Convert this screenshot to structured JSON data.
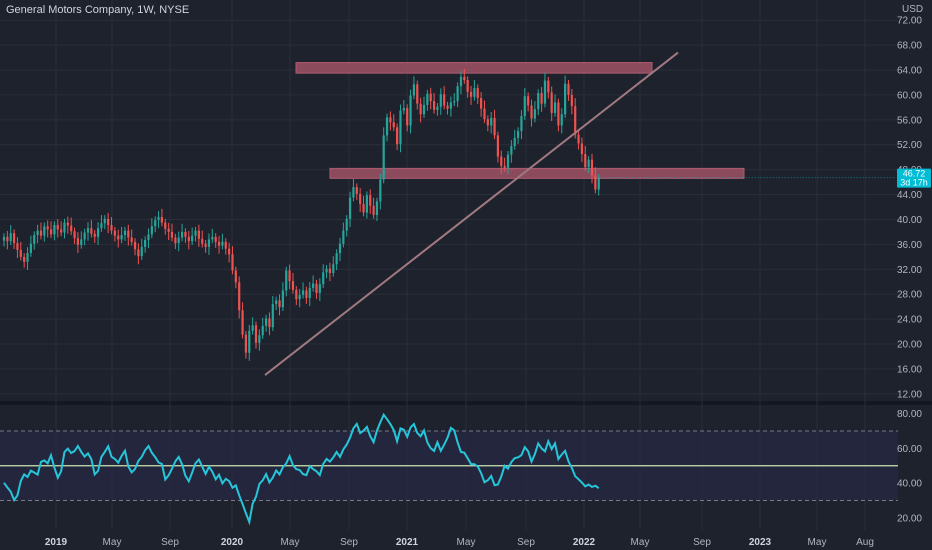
{
  "header": {
    "title": "General Motors Company, 1W, NYSE",
    "currency": "USD"
  },
  "colors": {
    "background": "#1e222d",
    "grid": "#2a2e39",
    "up": "#26a69a",
    "down": "#ef5350",
    "zone": "#b05a6e",
    "trendline": "#a07a80",
    "rsi_line": "#26c6da",
    "rsi_mid": "#c8e6b0",
    "rsi_band": "#2a2a4a",
    "price_tag": "#00bcd4"
  },
  "price_tag": {
    "line1": "46.72",
    "line2": "3d 17h"
  },
  "chart_data": [
    {
      "type": "candlestick",
      "title": "General Motors Company, 1W, NYSE",
      "ylim": [
        11,
        73
      ],
      "y_ticks": [
        "12.00",
        "16.00",
        "20.00",
        "24.00",
        "28.00",
        "32.00",
        "36.00",
        "40.00",
        "44.00",
        "48.00",
        "52.00",
        "56.00",
        "60.00",
        "64.00",
        "68.00",
        "72.00"
      ],
      "x_labels": [
        {
          "label": "2019",
          "bold": true
        },
        {
          "label": "May",
          "bold": false
        },
        {
          "label": "Sep",
          "bold": false
        },
        {
          "label": "2020",
          "bold": true
        },
        {
          "label": "May",
          "bold": false
        },
        {
          "label": "Sep",
          "bold": false
        },
        {
          "label": "2021",
          "bold": true
        },
        {
          "label": "May",
          "bold": false
        },
        {
          "label": "Sep",
          "bold": false
        },
        {
          "label": "2022",
          "bold": true
        },
        {
          "label": "May",
          "bold": false
        },
        {
          "label": "Sep",
          "bold": false
        },
        {
          "label": "2023",
          "bold": true
        },
        {
          "label": "May",
          "bold": false
        },
        {
          "label": "Aug",
          "bold": false
        }
      ],
      "close_series": [
        37.2,
        36.5,
        37.8,
        36.2,
        35.1,
        34.0,
        33.2,
        34.6,
        36.1,
        37.5,
        38.2,
        37.4,
        38.9,
        38.4,
        37.6,
        39.1,
        38.4,
        37.9,
        39.5,
        39.0,
        38.1,
        37.0,
        35.9,
        36.8,
        37.9,
        38.6,
        37.7,
        37.2,
        38.6,
        39.4,
        40.1,
        39.1,
        38.2,
        37.4,
        36.8,
        37.5,
        38.2,
        37.1,
        36.4,
        35.2,
        34.1,
        35.6,
        36.7,
        37.6,
        38.9,
        39.9,
        40.4,
        39.5,
        38.5,
        38.0,
        37.1,
        36.2,
        37.1,
        38.0,
        37.2,
        36.5,
        37.4,
        38.2,
        36.9,
        36.1,
        35.6,
        36.8,
        37.2,
        36.4,
        35.8,
        36.4,
        35.3,
        34.4,
        31.8,
        29.9,
        25.4,
        21.5,
        18.6,
        22.1,
        23.0,
        20.2,
        21.4,
        22.9,
        24.1,
        22.7,
        26.4,
        27.0,
        25.9,
        28.6,
        31.8,
        30.1,
        28.7,
        27.2,
        27.9,
        28.6,
        27.4,
        29.0,
        29.7,
        28.2,
        29.6,
        31.5,
        32.1,
        31.4,
        32.8,
        34.6,
        36.1,
        38.2,
        40.1,
        43.5,
        45.2,
        44.1,
        42.5,
        41.1,
        43.9,
        42.2,
        40.7,
        42.9,
        46.4,
        53.5,
        56.4,
        55.6,
        54.8,
        52.1,
        57.5,
        57.9,
        55.1,
        59.9,
        61.7,
        58.6,
        56.9,
        58.4,
        60.2,
        59.0,
        57.6,
        58.1,
        60.1,
        58.3,
        57.8,
        58.8,
        59.0,
        61.4,
        62.9,
        62.4,
        60.5,
        59.7,
        61.1,
        59.5,
        57.8,
        56.1,
        55.1,
        56.3,
        53.5,
        50.1,
        48.6,
        48.3,
        50.4,
        51.8,
        53.1,
        54.2,
        56.6,
        59.8,
        58.3,
        56.2,
        57.7,
        60.3,
        58.6,
        62.3,
        60.4,
        57.1,
        58.8,
        55.1,
        56.9,
        61.8,
        60.0,
        58.2,
        53.6,
        52.2,
        50.5,
        48.4,
        49.6,
        47.1,
        44.8,
        46.7
      ],
      "zones": [
        {
          "name": "resistance",
          "from": 63.5,
          "to": 65.2
        },
        {
          "name": "support",
          "from": 46.6,
          "to": 48.2
        }
      ],
      "trendline": {
        "from": {
          "price": 15.0
        },
        "to": {
          "price": 66.8
        }
      },
      "last_price": 46.72
    },
    {
      "type": "line",
      "name": "RSI",
      "ylim": [
        13,
        85
      ],
      "y_ticks": [
        "20.00",
        "40.00",
        "60.00",
        "80.00"
      ],
      "levels": {
        "upper": 70,
        "mid": 50,
        "lower": 30
      },
      "values": [
        40.2,
        37.5,
        35.1,
        30.2,
        32.9,
        41.2,
        45.0,
        43.5,
        47.2,
        46.1,
        44.9,
        52.3,
        53.1,
        51.4,
        56.1,
        48.9,
        43.1,
        46.8,
        57.9,
        59.9,
        57.3,
        58.5,
        61.4,
        58.0,
        55.3,
        57.2,
        53.8,
        45.0,
        47.1,
        55.1,
        58.0,
        61.2,
        55.2,
        53.9,
        51.8,
        55.6,
        58.7,
        49.6,
        46.2,
        48.1,
        52.8,
        55.2,
        58.9,
        61.3,
        57.5,
        55.0,
        51.9,
        51.0,
        42.1,
        44.5,
        48.3,
        52.6,
        55.1,
        50.8,
        44.3,
        41.1,
        46.2,
        51.4,
        53.6,
        49.5,
        45.3,
        49.4,
        46.6,
        42.2,
        44.8,
        39.9,
        42.5,
        41.2,
        37.3,
        38.7,
        33.0,
        27.9,
        22.6,
        17.6,
        28.1,
        32.2,
        39.5,
        41.6,
        45.2,
        40.4,
        43.2,
        47.3,
        45.0,
        49.2,
        51.3,
        55.5,
        50.3,
        48.1,
        47.5,
        45.2,
        44.6,
        49.8,
        48.1,
        46.8,
        44.7,
        51.1,
        53.9,
        52.4,
        54.8,
        57.9,
        55.1,
        59.5,
        62.2,
        66.3,
        71.5,
        74.1,
        68.8,
        70.2,
        72.4,
        67.1,
        63.6,
        70.3,
        75.0,
        79.4,
        76.8,
        74.0,
        70.5,
        64.1,
        71.5,
        70.8,
        66.7,
        72.1,
        74.0,
        68.9,
        67.0,
        70.3,
        63.4,
        60.1,
        58.5,
        63.5,
        58.6,
        62.2,
        66.1,
        71.8,
        70.4,
        63.5,
        57.9,
        57.5,
        54.3,
        51.0,
        50.9,
        49.6,
        45.8,
        40.5,
        41.7,
        44.1,
        38.8,
        39.2,
        43.9,
        50.0,
        48.3,
        52.1,
        54.4,
        54.9,
        56.1,
        60.7,
        58.3,
        52.4,
        56.8,
        62.8,
        60.0,
        58.3,
        64.1,
        59.6,
        62.9,
        53.9,
        56.5,
        58.6,
        52.5,
        48.8,
        44.0,
        42.2,
        40.3,
        38.1,
        39.2,
        37.8,
        38.5,
        37.1
      ]
    }
  ]
}
